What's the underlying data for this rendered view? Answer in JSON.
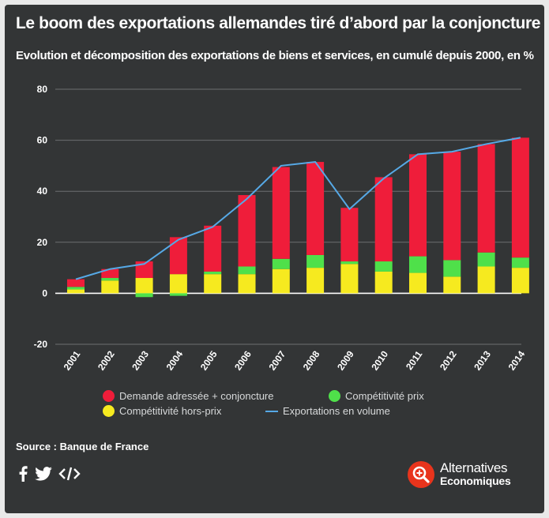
{
  "header": {
    "title": "Le boom des exportations allemandes tiré d’abord par la conjoncture",
    "subtitle": "Evolution et décomposition des exportations de biens et services, en cumulé depuis 2000, en %"
  },
  "chart_data": {
    "type": "bar",
    "stacked": true,
    "title": "Le boom des exportations allemandes tiré d’abord par la conjoncture",
    "subtitle": "Evolution et décomposition des exportations de biens et services, en cumulé depuis 2000, en %",
    "xlabel": "",
    "ylabel": "",
    "ylim": [
      -20,
      80
    ],
    "yticks": [
      -20,
      0,
      20,
      40,
      60,
      80
    ],
    "grid": true,
    "legend_position": "bottom",
    "categories": [
      "2001",
      "2002",
      "2003",
      "2004",
      "2005",
      "2006",
      "2007",
      "2008",
      "2009",
      "2010",
      "2011",
      "2012",
      "2013",
      "2014"
    ],
    "series": [
      {
        "name": "Compétitivité hors-prix",
        "kind": "bar",
        "color": "#f6ea1f",
        "values": [
          1.5,
          5,
          6,
          7.5,
          7.5,
          7.5,
          9.5,
          10,
          11.5,
          8.5,
          8,
          6.5,
          10.5,
          10
        ]
      },
      {
        "name": "Compétitivité prix",
        "kind": "bar",
        "color": "#4fe04a",
        "values": [
          1,
          1,
          -1.5,
          -1,
          1,
          3,
          4,
          5,
          1,
          4,
          6.5,
          6.5,
          5.5,
          4
        ]
      },
      {
        "name": "Demande adressée + conjoncture",
        "kind": "bar",
        "color": "#ef1d3a",
        "values": [
          3,
          3.5,
          6.5,
          14.5,
          18,
          28,
          36,
          36.5,
          21,
          33,
          40,
          42.5,
          42.5,
          47
        ]
      },
      {
        "name": "Exportations en volume",
        "kind": "line",
        "color": "#56a9e6",
        "values": [
          5.5,
          9.5,
          11.5,
          21,
          26,
          37,
          50,
          51.5,
          33,
          45,
          54.5,
          55.5,
          58.5,
          61
        ]
      }
    ],
    "source": "Source : Banque de France"
  },
  "legend": {
    "demande": "Demande adressée + conjoncture",
    "prix": "Compétitivité prix",
    "horsprix": "Compétitivité hors-prix",
    "volume": "Exportations en volume"
  },
  "footer": {
    "source": "Source : Banque de France",
    "brand_line1": "Alternatives",
    "brand_line2": "Economiques",
    "icons": [
      "facebook-icon",
      "twitter-icon",
      "embed-code-icon"
    ]
  },
  "colors": {
    "background": "#333536",
    "demande": "#ef1d3a",
    "prix": "#4fe04a",
    "horsprix": "#f6ea1f",
    "volume": "#56a9e6",
    "brand": "#e8341c"
  }
}
